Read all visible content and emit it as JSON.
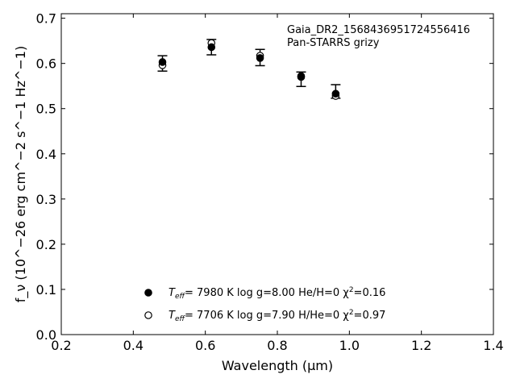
{
  "chart_data": {
    "type": "scatter",
    "annotation": [
      "Gaia_DR2_1568436951724556416",
      "Pan-STARRS grizy"
    ],
    "xlabel": "Wavelength (μm)",
    "ylabel": "f_ν (10^−26 erg cm^−2 s^−1 Hz^−1)",
    "xlim": [
      0.2,
      1.4
    ],
    "ylim": [
      0.0,
      0.71
    ],
    "xticks": [
      "0.2",
      "0.4",
      "0.6",
      "0.8",
      "1.0",
      "1.2",
      "1.4"
    ],
    "yticks": [
      "0.0",
      "0.1",
      "0.2",
      "0.3",
      "0.4",
      "0.5",
      "0.6",
      "0.7"
    ],
    "grid": false,
    "legend_position": "bottom-center",
    "observed": {
      "x": [
        0.481,
        0.617,
        0.752,
        0.866,
        0.962
      ],
      "y": [
        0.6,
        0.636,
        0.613,
        0.565,
        0.538
      ],
      "yerr_low": [
        0.017,
        0.017,
        0.018,
        0.016,
        0.015
      ],
      "yerr_high": [
        0.017,
        0.017,
        0.018,
        0.016,
        0.015
      ]
    },
    "series": [
      {
        "marker": "filled-circle",
        "label_parts": [
          "T",
          "eff",
          "= 7980 K  log g=8.00  He/H=0  χ",
          "2",
          "=0.16"
        ],
        "x": [
          0.481,
          0.617,
          0.752,
          0.866,
          0.962
        ],
        "y": [
          0.603,
          0.636,
          0.612,
          0.572,
          0.533
        ]
      },
      {
        "marker": "open-circle",
        "label_parts": [
          "T",
          "eff",
          "= 7706 K  log g=7.90  H/He=0  χ",
          "2",
          "=0.97"
        ],
        "x": [
          0.481,
          0.617,
          0.752,
          0.866,
          0.962
        ],
        "y": [
          0.596,
          0.645,
          0.617,
          0.57,
          0.528
        ]
      }
    ]
  }
}
